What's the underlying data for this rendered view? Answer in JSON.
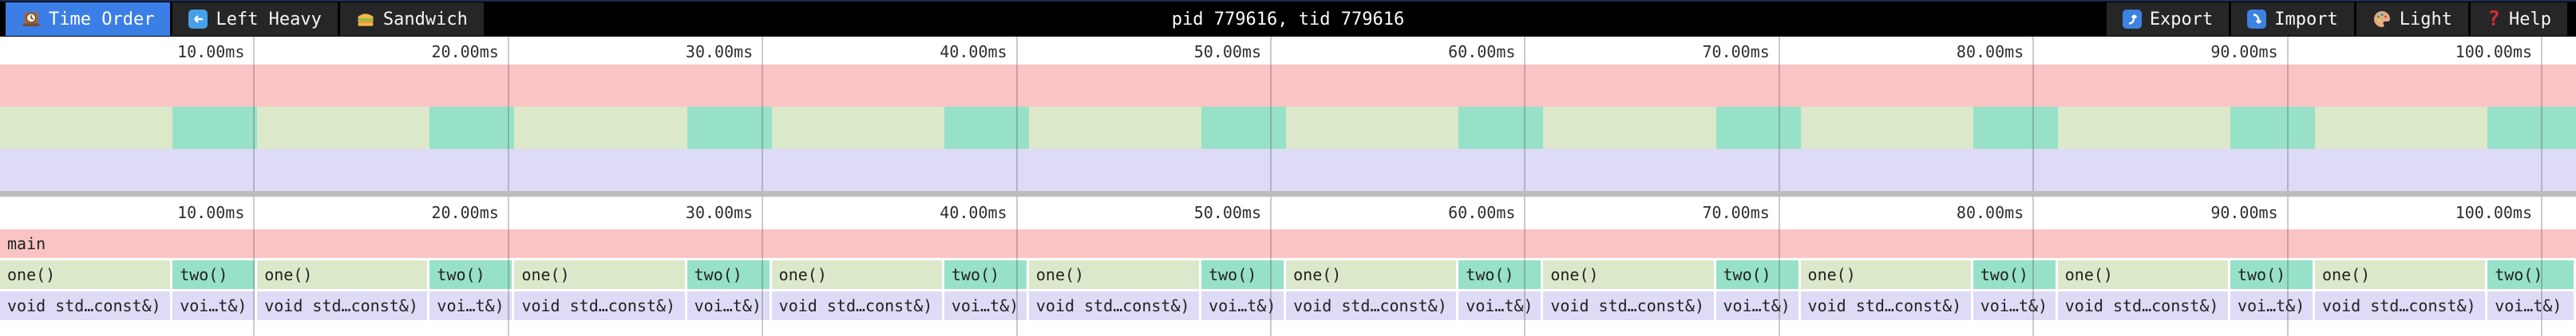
{
  "topbar": {
    "tabs": [
      {
        "label": "Time Order",
        "icon": "clock-icon",
        "active": true
      },
      {
        "label": "Left Heavy",
        "icon": "left-arrow-icon",
        "active": false
      },
      {
        "label": "Sandwich",
        "icon": "sandwich-icon",
        "active": false
      }
    ],
    "title": "pid 779616, tid 779616",
    "actions": [
      {
        "label": "Export",
        "icon": "export-icon"
      },
      {
        "label": "Import",
        "icon": "import-icon"
      },
      {
        "label": "Light",
        "icon": "palette-icon"
      },
      {
        "label": "Help",
        "icon": "question-icon"
      }
    ]
  },
  "timeline": {
    "total_ms": 101.35,
    "ticks": [
      {
        "value": 10,
        "label": "10.00ms"
      },
      {
        "value": 20,
        "label": "20.00ms"
      },
      {
        "value": 30,
        "label": "30.00ms"
      },
      {
        "value": 40,
        "label": "40.00ms"
      },
      {
        "value": 50,
        "label": "50.00ms"
      },
      {
        "value": 60,
        "label": "60.00ms"
      },
      {
        "value": 70,
        "label": "70.00ms"
      },
      {
        "value": 80,
        "label": "80.00ms"
      },
      {
        "value": 90,
        "label": "90.00ms"
      },
      {
        "value": 100,
        "label": "100.00ms"
      }
    ]
  },
  "flamegraph": {
    "root": {
      "label": "main",
      "start": 0,
      "end": 101.35
    },
    "depth1": [
      {
        "label": "one()",
        "kind": "one",
        "start": 0,
        "end": 6.79
      },
      {
        "label": "two()",
        "kind": "two",
        "start": 6.79,
        "end": 10.12
      },
      {
        "label": "one()",
        "kind": "one",
        "start": 10.12,
        "end": 16.91
      },
      {
        "label": "two()",
        "kind": "two",
        "start": 16.91,
        "end": 20.24
      },
      {
        "label": "one()",
        "kind": "one",
        "start": 20.24,
        "end": 27.03
      },
      {
        "label": "two()",
        "kind": "two",
        "start": 27.03,
        "end": 30.36
      },
      {
        "label": "one()",
        "kind": "one",
        "start": 30.36,
        "end": 37.15
      },
      {
        "label": "two()",
        "kind": "two",
        "start": 37.15,
        "end": 40.48
      },
      {
        "label": "one()",
        "kind": "one",
        "start": 40.48,
        "end": 47.27
      },
      {
        "label": "two()",
        "kind": "two",
        "start": 47.27,
        "end": 50.6
      },
      {
        "label": "one()",
        "kind": "one",
        "start": 50.6,
        "end": 57.39
      },
      {
        "label": "two()",
        "kind": "two",
        "start": 57.39,
        "end": 60.72
      },
      {
        "label": "one()",
        "kind": "one",
        "start": 60.72,
        "end": 67.51
      },
      {
        "label": "two()",
        "kind": "two",
        "start": 67.51,
        "end": 70.84
      },
      {
        "label": "one()",
        "kind": "one",
        "start": 70.84,
        "end": 77.63
      },
      {
        "label": "two()",
        "kind": "two",
        "start": 77.63,
        "end": 80.96
      },
      {
        "label": "one()",
        "kind": "one",
        "start": 80.96,
        "end": 87.75
      },
      {
        "label": "two()",
        "kind": "two",
        "start": 87.75,
        "end": 91.08
      },
      {
        "label": "one()",
        "kind": "one",
        "start": 91.08,
        "end": 97.87
      },
      {
        "label": "two()",
        "kind": "two",
        "start": 97.87,
        "end": 101.35
      }
    ],
    "depth2": [
      {
        "label": "void std…const&)",
        "kind": "child",
        "start": 0,
        "end": 6.79
      },
      {
        "label": "voi…t&)",
        "kind": "child",
        "start": 6.79,
        "end": 10.12
      },
      {
        "label": "void std…const&)",
        "kind": "child",
        "start": 10.12,
        "end": 16.91
      },
      {
        "label": "voi…t&)",
        "kind": "child",
        "start": 16.91,
        "end": 20.24
      },
      {
        "label": "void std…const&)",
        "kind": "child",
        "start": 20.24,
        "end": 27.03
      },
      {
        "label": "voi…t&)",
        "kind": "child",
        "start": 27.03,
        "end": 30.36
      },
      {
        "label": "void std…const&)",
        "kind": "child",
        "start": 30.36,
        "end": 37.15
      },
      {
        "label": "voi…t&)",
        "kind": "child",
        "start": 37.15,
        "end": 40.48
      },
      {
        "label": "void std…const&)",
        "kind": "child",
        "start": 40.48,
        "end": 47.27
      },
      {
        "label": "voi…t&)",
        "kind": "child",
        "start": 47.27,
        "end": 50.6
      },
      {
        "label": "void std…const&)",
        "kind": "child",
        "start": 50.6,
        "end": 57.39
      },
      {
        "label": "voi…t&)",
        "kind": "child",
        "start": 57.39,
        "end": 60.72
      },
      {
        "label": "void std…const&)",
        "kind": "child",
        "start": 60.72,
        "end": 67.51
      },
      {
        "label": "voi…t&)",
        "kind": "child",
        "start": 67.51,
        "end": 70.84
      },
      {
        "label": "void std…const&)",
        "kind": "child",
        "start": 70.84,
        "end": 77.63
      },
      {
        "label": "voi…t&)",
        "kind": "child",
        "start": 77.63,
        "end": 80.96
      },
      {
        "label": "void std…const&)",
        "kind": "child",
        "start": 80.96,
        "end": 87.75
      },
      {
        "label": "voi…t&)",
        "kind": "child",
        "start": 87.75,
        "end": 91.08
      },
      {
        "label": "void std…const&)",
        "kind": "child",
        "start": 91.08,
        "end": 97.87
      },
      {
        "label": "voi…t&)",
        "kind": "child",
        "start": 97.87,
        "end": 101.35
      }
    ]
  },
  "colors": {
    "accent_blue": "#3b7ee5",
    "frame_pink": "#fbc4c4",
    "frame_green": "#dce8ca",
    "frame_teal": "#97e1c8",
    "frame_lavender": "#dedbf6",
    "topbar_bg": "#000000",
    "button_bg": "#262626",
    "divider_gray": "#bcbcbc"
  }
}
